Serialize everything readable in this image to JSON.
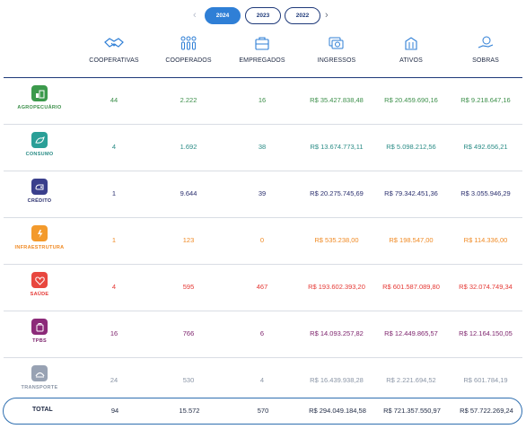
{
  "years": {
    "prev_arrow": "‹",
    "next_arrow": "›",
    "items": [
      "2024",
      "2023",
      "2022"
    ],
    "selected": "2024"
  },
  "columns": [
    "COOPERATIVAS",
    "COOPERADOS",
    "EMPREGADOS",
    "INGRESSOS",
    "ATIVOS",
    "SOBRAS"
  ],
  "rows": [
    {
      "name": "AGROPECUÁRIO",
      "values": [
        "44",
        "2.222",
        "16",
        "R$ 35.427.838,48",
        "R$ 20.459.690,16",
        "R$ 9.218.647,16"
      ]
    },
    {
      "name": "CONSUMO",
      "values": [
        "4",
        "1.692",
        "38",
        "R$ 13.674.773,11",
        "R$ 5.098.212,56",
        "R$ 492.656,21"
      ]
    },
    {
      "name": "CRÉDITO",
      "values": [
        "1",
        "9.644",
        "39",
        "R$ 20.275.745,69",
        "R$ 79.342.451,36",
        "R$ 3.055.946,29"
      ]
    },
    {
      "name": "INFRAESTRUTURA",
      "values": [
        "1",
        "123",
        "0",
        "R$ 535.238,00",
        "R$ 198.547,00",
        "R$ 114.336,00"
      ]
    },
    {
      "name": "SAÚDE",
      "values": [
        "4",
        "595",
        "467",
        "R$ 193.602.393,20",
        "R$ 601.587.089,80",
        "R$ 32.074.749,34"
      ]
    },
    {
      "name": "TPBS",
      "values": [
        "16",
        "766",
        "6",
        "R$ 14.093.257,82",
        "R$ 12.449.865,57",
        "R$ 12.164.150,05"
      ]
    },
    {
      "name": "TRANSPORTE",
      "values": [
        "24",
        "530",
        "4",
        "R$ 16.439.938,28",
        "R$ 2.221.694,52",
        "R$ 601.784,19"
      ]
    }
  ],
  "total": {
    "label": "TOTAL",
    "values": [
      "94",
      "15.572",
      "570",
      "R$ 294.049.184,58",
      "R$ 721.357.550,97",
      "R$ 57.722.269,24"
    ]
  },
  "colors": {
    "accent": "#2f7fd6",
    "navy": "#1f3a7a",
    "agro": "#3c9a4c",
    "consumo": "#2a9f97",
    "credito": "#3a3f8c",
    "infra": "#f39a2c",
    "saude": "#e8473f",
    "tpbs": "#8c2a79",
    "transporte": "#98a2b3"
  },
  "icons": [
    "handshake-icon",
    "people-icon",
    "briefcase-icon",
    "money-icon",
    "building-icon",
    "coin-hand-icon"
  ]
}
